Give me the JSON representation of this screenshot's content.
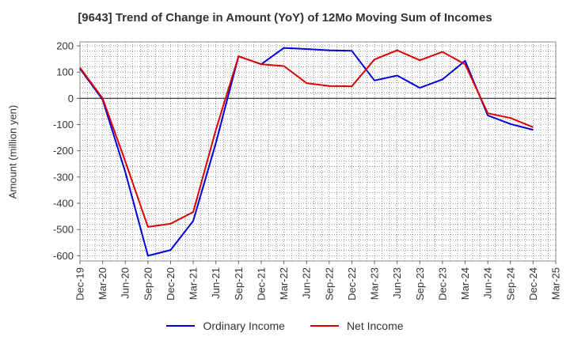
{
  "chart_data": {
    "type": "line",
    "title": "[9643]  Trend of Change in Amount (YoY) of 12Mo Moving Sum of Incomes",
    "ylabel": "Amount (million yen)",
    "xlabel": "",
    "ylim": [
      -620,
      215
    ],
    "yticks": [
      200,
      100,
      0,
      -100,
      -200,
      -300,
      -400,
      -500,
      -600
    ],
    "categories": [
      "Dec-19",
      "Mar-20",
      "Jun-20",
      "Sep-20",
      "Dec-20",
      "Mar-21",
      "Jun-21",
      "Sep-21",
      "Dec-21",
      "Mar-22",
      "Jun-22",
      "Sep-22",
      "Dec-22",
      "Mar-23",
      "Jun-23",
      "Sep-23",
      "Dec-23",
      "Mar-24",
      "Jun-24",
      "Sep-24",
      "Dec-24",
      "Mar-25"
    ],
    "grid": true,
    "legend_position": "bottom",
    "series": [
      {
        "name": "Ordinary Income",
        "color": "#0000dd",
        "values": [
          113,
          -5,
          -280,
          -600,
          -578,
          -467,
          -170,
          160,
          130,
          192,
          188,
          183,
          181,
          68,
          87,
          40,
          72,
          143,
          -65,
          -98,
          -120,
          null
        ]
      },
      {
        "name": "Net Income",
        "color": "#dd0000",
        "values": [
          117,
          0,
          -240,
          -490,
          -478,
          -433,
          -120,
          160,
          130,
          123,
          58,
          47,
          46,
          148,
          183,
          145,
          177,
          130,
          -57,
          -75,
          -110,
          null
        ]
      }
    ]
  }
}
